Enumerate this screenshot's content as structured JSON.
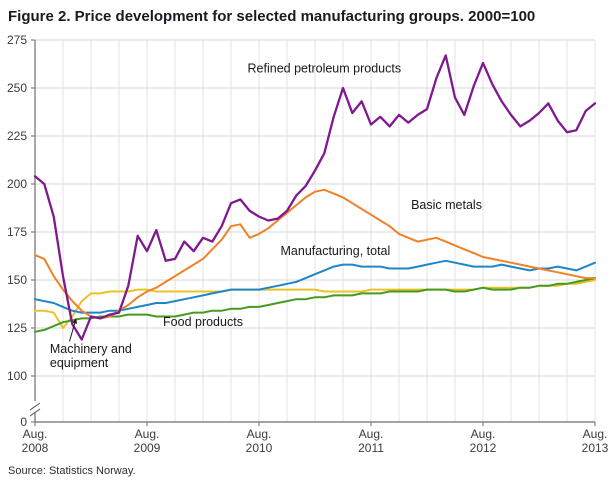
{
  "title": "Figure 2. Price development for selected manufacturing groups. 2000=100",
  "source": "Source: Statistics Norway.",
  "chart_data": {
    "type": "line",
    "title": "Figure 2. Price development for selected manufacturing groups. 2000=100",
    "xlabel": "",
    "ylabel": "",
    "frequency": "monthly",
    "x_start": "Aug 2008",
    "x_end": "Aug 2013",
    "x_total_months": 60,
    "ylim": [
      100,
      275
    ],
    "y_break_to_zero": true,
    "y_zero_label": "0",
    "grid": true,
    "y_ticks": [
      100,
      125,
      150,
      175,
      200,
      225,
      250,
      275
    ],
    "x_ticks": [
      {
        "month": 0,
        "line1": "Aug.",
        "line2": "2008"
      },
      {
        "month": 12,
        "line1": "Aug.",
        "line2": "2009"
      },
      {
        "month": 24,
        "line1": "Aug.",
        "line2": "2010"
      },
      {
        "month": 36,
        "line1": "Aug.",
        "line2": "2011"
      },
      {
        "month": 48,
        "line1": "Aug.",
        "line2": "2012"
      },
      {
        "month": 60,
        "line1": "Aug.",
        "line2": "2013"
      }
    ],
    "colors": {
      "grid_horizontal": "#d7d7d7",
      "grid_vertical": "#e3e3e3",
      "axis": "#6e6e6e",
      "tick_text": "#3b3b3b",
      "annotation": "#1a1a1a"
    },
    "series": [
      {
        "id": "machinery-and-equipment",
        "name": "Machinery and equipment",
        "color": "#e9c326",
        "width": 2,
        "values": [
          134,
          134,
          133,
          125,
          131,
          139,
          143,
          143,
          144,
          144,
          144,
          145,
          145,
          144,
          144,
          144,
          144,
          144,
          144,
          144,
          144,
          145,
          145,
          145,
          145,
          145,
          145,
          145,
          145,
          145,
          145,
          144,
          144,
          144,
          144,
          144,
          145,
          145,
          145,
          145,
          145,
          145,
          145,
          145,
          145,
          145,
          145,
          145,
          146,
          146,
          146,
          146,
          146,
          146,
          147,
          147,
          147,
          148,
          148,
          149,
          150
        ]
      },
      {
        "id": "food-products",
        "name": "Food products",
        "color": "#459a20",
        "width": 2,
        "values": [
          123,
          124,
          126,
          128,
          129,
          130,
          130,
          131,
          131,
          131,
          132,
          132,
          132,
          131,
          131,
          131,
          132,
          133,
          133,
          134,
          134,
          135,
          135,
          136,
          136,
          137,
          138,
          139,
          140,
          140,
          141,
          141,
          142,
          142,
          142,
          143,
          143,
          143,
          144,
          144,
          144,
          144,
          145,
          145,
          145,
          144,
          144,
          145,
          146,
          145,
          145,
          145,
          146,
          146,
          147,
          147,
          148,
          148,
          149,
          150,
          151
        ]
      },
      {
        "id": "manufacturing-total",
        "name": "Manufacturing, total",
        "color": "#1e86c8",
        "width": 2,
        "values": [
          140,
          139,
          138,
          136,
          134,
          133,
          133,
          133,
          134,
          134,
          135,
          136,
          137,
          138,
          138,
          139,
          140,
          141,
          142,
          143,
          144,
          145,
          145,
          145,
          145,
          146,
          147,
          148,
          149,
          151,
          153,
          155,
          157,
          158,
          158,
          157,
          157,
          157,
          156,
          156,
          156,
          157,
          158,
          159,
          160,
          159,
          158,
          157,
          157,
          157,
          158,
          157,
          156,
          155,
          156,
          156,
          157,
          156,
          155,
          157,
          159
        ]
      },
      {
        "id": "basic-metals",
        "name": "Basic metals",
        "color": "#ef8126",
        "width": 2,
        "values": [
          163,
          161,
          152,
          145,
          139,
          134,
          131,
          130,
          131,
          134,
          137,
          141,
          144,
          146,
          149,
          152,
          155,
          158,
          161,
          166,
          171,
          178,
          179,
          172,
          174,
          177,
          181,
          185,
          189,
          193,
          196,
          197,
          195,
          193,
          190,
          187,
          184,
          181,
          178,
          174,
          172,
          170,
          171,
          172,
          170,
          168,
          166,
          164,
          162,
          161,
          160,
          159,
          158,
          157,
          156,
          155,
          154,
          153,
          152,
          151,
          151
        ]
      },
      {
        "id": "refined-petroleum-products",
        "name": "Refined petroleum products",
        "color": "#7e1a8e",
        "width": 2.3,
        "values": [
          204,
          200,
          183,
          152,
          127,
          119,
          131,
          130,
          132,
          133,
          147,
          173,
          165,
          176,
          160,
          161,
          170,
          165,
          172,
          170,
          178,
          190,
          192,
          186,
          183,
          181,
          182,
          186,
          194,
          199,
          207,
          216,
          235,
          250,
          237,
          243,
          231,
          235,
          230,
          236,
          232,
          236,
          239,
          255,
          267,
          245,
          236,
          251,
          263,
          252,
          243,
          236,
          230,
          233,
          237,
          242,
          233,
          227,
          228,
          238,
          242
        ]
      }
    ],
    "annotations": [
      {
        "id": "annotation-refined-petroleum-products",
        "lines": [
          "Refined petroleum products"
        ],
        "month": 31,
        "value": 258,
        "anchor": "middle"
      },
      {
        "id": "annotation-basic-metals",
        "lines": [
          "Basic metals"
        ],
        "month": 40.3,
        "value": 187,
        "anchor": "start"
      },
      {
        "id": "annotation-manufacturing-total",
        "lines": [
          "Manufacturing, total"
        ],
        "month": 26.3,
        "value": 163,
        "anchor": "start"
      },
      {
        "id": "annotation-food-products",
        "lines": [
          "Food products"
        ],
        "month": 18,
        "value": 126,
        "anchor": "middle"
      },
      {
        "id": "annotation-machinery-and-equipment",
        "lines": [
          "Machinery and",
          "equipment"
        ],
        "month": 1.6,
        "value": 112,
        "anchor": "start",
        "arrow": {
          "from_month": 3.7,
          "from_value": 118,
          "to_month": 4.4,
          "to_value": 130
        }
      }
    ]
  }
}
